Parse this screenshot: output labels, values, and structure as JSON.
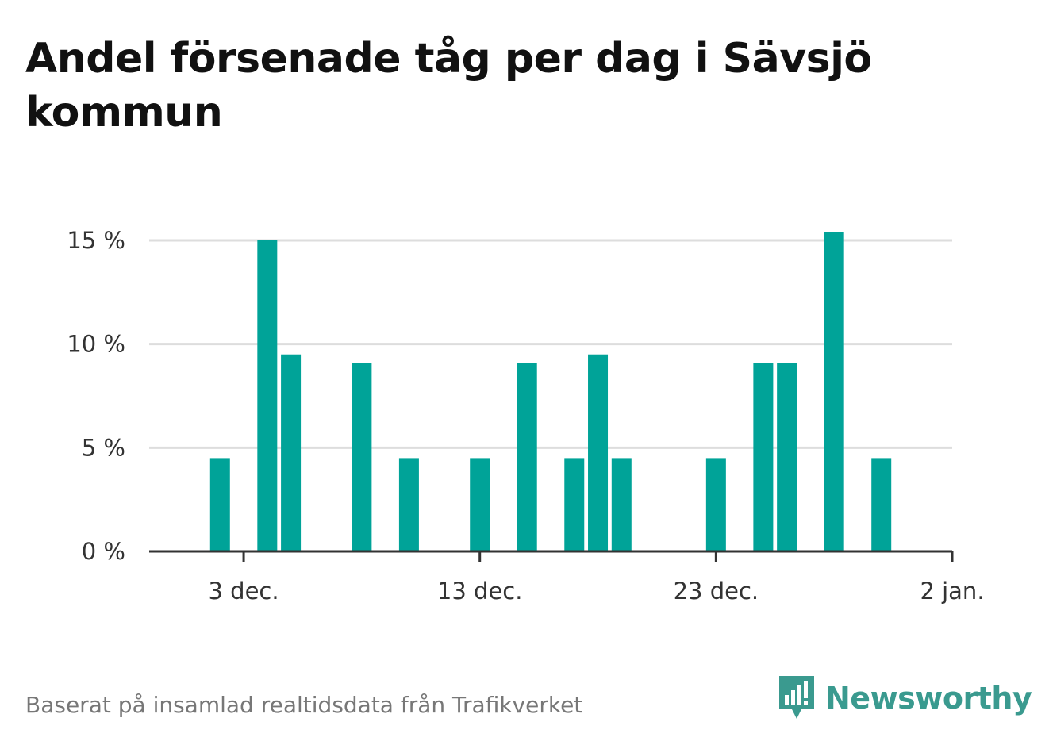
{
  "chart_data": {
    "type": "bar",
    "title": "Andel försenade tåg per dag i Sävsjö kommun",
    "x_tick_labels": [
      "3 dec.",
      "13 dec.",
      "23 dec.",
      "2 jan."
    ],
    "y_tick_labels": [
      "0 %",
      "5 %",
      "10 %",
      "15 %"
    ],
    "y_ticks": [
      0,
      5,
      10,
      15
    ],
    "ylim": [
      0,
      16
    ],
    "xlim": [
      "2023-11-29",
      "2024-01-02"
    ],
    "x_ticks": [
      "2023-12-03",
      "2023-12-13",
      "2023-12-23",
      "2024-01-02"
    ],
    "grid": true,
    "bar_color": "#00a398",
    "bars": [
      {
        "date": "2023-12-02",
        "value": 4.5
      },
      {
        "date": "2023-12-04",
        "value": 15.0
      },
      {
        "date": "2023-12-05",
        "value": 9.5
      },
      {
        "date": "2023-12-08",
        "value": 9.1
      },
      {
        "date": "2023-12-10",
        "value": 4.5
      },
      {
        "date": "2023-12-13",
        "value": 4.5
      },
      {
        "date": "2023-12-15",
        "value": 9.1
      },
      {
        "date": "2023-12-17",
        "value": 4.5
      },
      {
        "date": "2023-12-18",
        "value": 9.5
      },
      {
        "date": "2023-12-19",
        "value": 4.5
      },
      {
        "date": "2023-12-23",
        "value": 4.5
      },
      {
        "date": "2023-12-25",
        "value": 9.1
      },
      {
        "date": "2023-12-26",
        "value": 9.1
      },
      {
        "date": "2023-12-28",
        "value": 15.4
      },
      {
        "date": "2023-12-30",
        "value": 4.5
      }
    ]
  },
  "footer": {
    "source": "Baserat på insamlad realtidsdata från Trafikverket"
  },
  "logo": {
    "text": "Newsworthy",
    "color": "#3a9a8f",
    "icon": "bar-chart-bubble-icon"
  }
}
